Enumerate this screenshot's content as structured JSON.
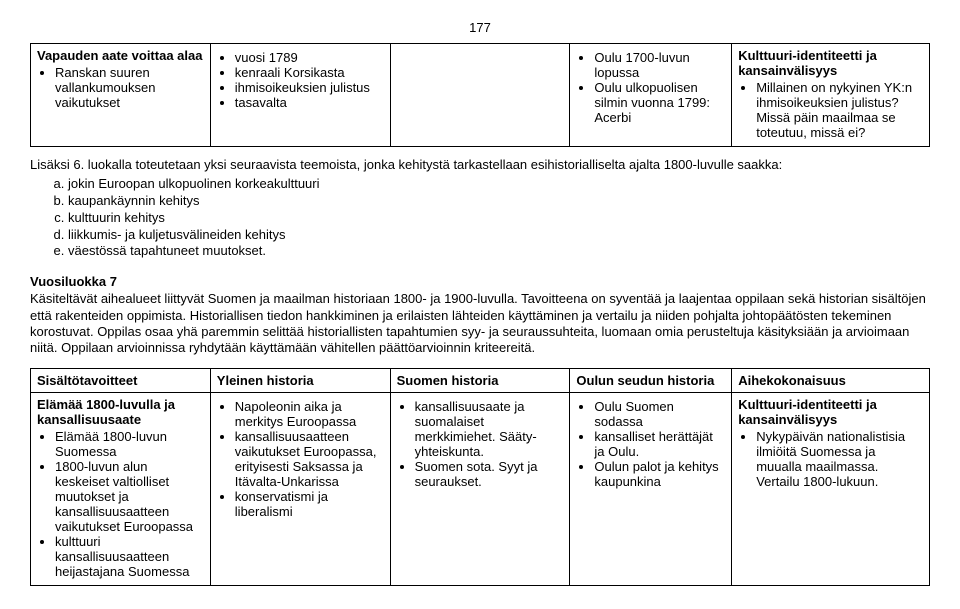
{
  "pageNumber": "177",
  "table1": {
    "r0": {
      "c0_title": "Vapauden aate voittaa alaa",
      "c0_items": [
        "Ranskan suuren vallankumouksen vaikutukset"
      ],
      "c1_items": [
        "vuosi 1789",
        "kenraali Korsikasta",
        "ihmisoikeuksien julistus",
        "tasavalta"
      ],
      "c2": "",
      "c3_items": [
        "Oulu 1700-luvun lopussa",
        "Oulu ulkopuolisen silmin vuonna 1799: Acerbi"
      ],
      "c4_title": "Kulttuuri-identiteetti ja kansainvälisyys",
      "c4_items": [
        "Millainen on nykyinen YK:n ihmisoikeuksien julistus? Missä päin maailmaa se toteutuu, missä ei?"
      ]
    }
  },
  "mid": {
    "lead": "Lisäksi 6. luokalla toteutetaan yksi seuraavista teemoista, jonka kehitystä tarkastellaan esihistorialliselta ajalta 1800-luvulle saakka:",
    "items": [
      "jokin Euroopan ulkopuolinen korkeakulttuuri",
      "kaupankäynnin kehitys",
      "kulttuurin kehitys",
      "liikkumis- ja kuljetusvälineiden kehitys",
      "väestössä tapahtuneet muutokset."
    ]
  },
  "section": {
    "heading": "Vuosiluokka 7",
    "para": "Käsiteltävät aihealueet liittyvät Suomen ja maailman historiaan 1800- ja 1900-luvulla. Tavoitteena on syventää ja laajentaa oppilaan sekä historian sisältöjen että rakenteiden oppimista. Historiallisen tiedon hankkiminen ja erilaisten lähteiden käyttäminen ja vertailu ja niiden pohjalta johtopäätösten tekeminen korostuvat. Oppilas osaa yhä paremmin selittää historiallisten tapahtumien syy- ja seuraussuhteita, luomaan omia perusteltuja käsityksiään ja arvioimaan niitä. Oppilaan arvioinnissa ryhdytään käyttämään vähitellen päättöarvioinnin kriteereitä."
  },
  "table2": {
    "headers": {
      "c0": "Sisältötavoitteet",
      "c1": "Yleinen historia",
      "c2": "Suomen historia",
      "c3": "Oulun seudun historia",
      "c4": "Aihekokonaisuus"
    },
    "r1": {
      "c0_title": "Elämää 1800-luvulla ja kansallisuusaate",
      "c0_items": [
        "Elämää 1800-luvun Suomessa",
        "1800-luvun alun keskeiset valtiolliset muutokset ja kansallisuusaatteen vaikutukset Euroopassa",
        "kulttuuri kansallisuusaatteen heijastajana Suomessa"
      ],
      "c1_items": [
        "Napoleonin aika ja merkitys Euroopassa",
        "kansallisuusaatteen vaikutukset Euroopassa, erityisesti Saksassa ja Itävalta-Unkarissa",
        "konservatismi ja liberalismi"
      ],
      "c2_items": [
        "kansallisuusaate ja suomalaiset merkkimiehet. Sääty-yhteiskunta.",
        "Suomen sota. Syyt ja seuraukset."
      ],
      "c3_items": [
        "Oulu Suomen sodassa",
        "kansalliset herättäjät ja Oulu.",
        "Oulun palot ja kehitys kaupunkina"
      ],
      "c4_title": "Kulttuuri-identiteetti ja kansainvälisyys",
      "c4_items": [
        "Nykypäivän nationalistisia ilmiöitä Suomessa ja muualla maailmassa. Vertailu 1800-lukuun."
      ]
    }
  }
}
